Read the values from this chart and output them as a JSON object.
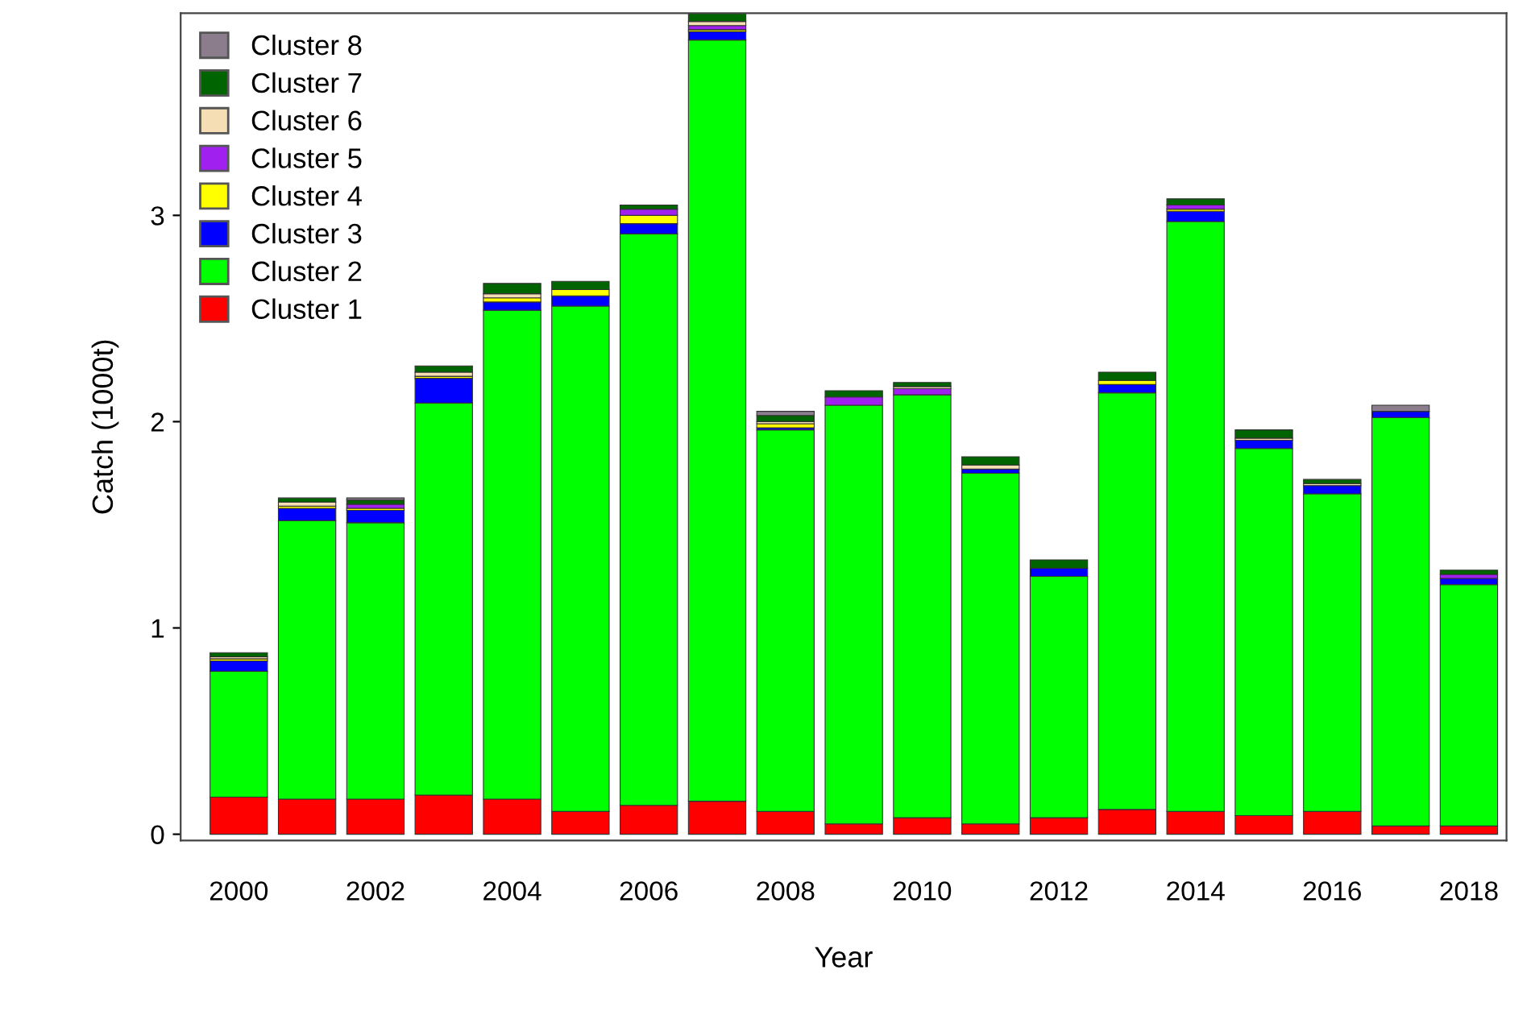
{
  "chart_data": {
    "type": "bar",
    "stacked": true,
    "xlabel": "Year",
    "ylabel": "Catch (1000t)",
    "categories": [
      "2000",
      null,
      "2002",
      null,
      "2004",
      null,
      "2006",
      null,
      "2008",
      null,
      "2010",
      null,
      "2012",
      null,
      "2014",
      null,
      "2016",
      null,
      "2018"
    ],
    "ylim": [
      -0.03,
      3.98
    ],
    "yticks": [
      0,
      1,
      2,
      3
    ],
    "grid": false,
    "legend": "top left",
    "series": [
      {
        "name": "Cluster 1",
        "color": "#ff0000",
        "values": [
          0.18,
          0.17,
          0.17,
          0.19,
          0.17,
          0.11,
          0.14,
          0.16,
          0.11,
          0.05,
          0.08,
          0.05,
          0.08,
          0.12,
          0.11,
          0.09,
          0.11,
          0.04,
          0.04
        ]
      },
      {
        "name": "Cluster 2",
        "color": "#00ff00",
        "values": [
          0.61,
          1.35,
          1.34,
          1.9,
          2.37,
          2.45,
          2.77,
          3.69,
          1.85,
          2.03,
          2.05,
          1.7,
          1.17,
          2.02,
          2.86,
          1.78,
          1.54,
          1.98,
          1.17
        ]
      },
      {
        "name": "Cluster 3",
        "color": "#0000ff",
        "values": [
          0.05,
          0.06,
          0.06,
          0.12,
          0.04,
          0.05,
          0.05,
          0.04,
          0.01,
          null,
          null,
          0.02,
          0.04,
          0.04,
          0.05,
          0.04,
          0.04,
          0.03,
          0.03
        ]
      },
      {
        "name": "Cluster 4",
        "color": "#ffff00",
        "values": [
          0.01,
          0.01,
          0.01,
          0.01,
          0.02,
          0.03,
          0.04,
          0.01,
          0.02,
          null,
          null,
          null,
          null,
          0.02,
          0.01,
          null,
          null,
          null,
          null
        ]
      },
      {
        "name": "Cluster 5",
        "color": "#a020f0",
        "values": [
          null,
          null,
          0.02,
          null,
          null,
          null,
          0.03,
          0.02,
          null,
          0.04,
          0.03,
          null,
          null,
          null,
          0.02,
          null,
          null,
          null,
          0.02
        ]
      },
      {
        "name": "Cluster 6",
        "color": "#f5deb3",
        "values": [
          0.01,
          0.02,
          null,
          0.02,
          0.02,
          null,
          null,
          0.02,
          0.01,
          null,
          0.01,
          0.02,
          null,
          null,
          null,
          0.01,
          0.01,
          null,
          null
        ]
      },
      {
        "name": "Cluster 7",
        "color": "#006400",
        "values": [
          0.02,
          0.02,
          0.02,
          0.03,
          0.05,
          0.04,
          0.02,
          0.04,
          0.03,
          0.03,
          0.02,
          0.04,
          0.04,
          0.04,
          0.03,
          0.04,
          0.02,
          null,
          0.02
        ]
      },
      {
        "name": "Cluster 8",
        "color": "#8b7d8b",
        "values": [
          null,
          null,
          0.01,
          null,
          null,
          null,
          null,
          null,
          0.02,
          null,
          null,
          null,
          null,
          null,
          null,
          null,
          null,
          0.03,
          null
        ]
      }
    ]
  }
}
